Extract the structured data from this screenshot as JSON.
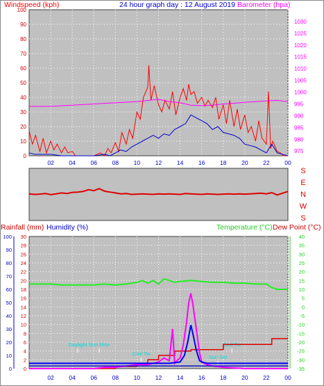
{
  "header": {
    "windspeed_label": "Windspeed (kph)",
    "title": "24 hour graph day : 12 August 2019",
    "barometer_label": "Barometer (hpa)"
  },
  "bottom_header": {
    "rainfall_label": "Rainfall (mm)",
    "humidity_label": "Humidity (%)",
    "temperature_label": "Temperature (°C)",
    "dewpoint_label": "Dew Point (°C)"
  },
  "colors": {
    "wind_gust": "#ff0000",
    "wind_avg": "#0000cc",
    "barometer": "#ff00ff",
    "wind_dir": "#dd0000",
    "rain": "#dd0000",
    "humidity": "#0000cc",
    "temperature": "#22ee22",
    "dewpoint": "#cc0000",
    "solar": "#ff00ff",
    "uv": "#0000ff",
    "annotation": "#00dddd",
    "plot_bg": "#c0c0c0"
  },
  "chart_data": [
    {
      "type": "line",
      "name": "wind-barometer",
      "x_ticks": [
        "02",
        "04",
        "06",
        "08",
        "10",
        "12",
        "14",
        "16",
        "18",
        "20",
        "22",
        "00"
      ],
      "left_axis": {
        "ticks": [
          0,
          10,
          20,
          30,
          40,
          50,
          60,
          70,
          80,
          90,
          100
        ],
        "ylim": [
          0,
          100
        ]
      },
      "right_axis": {
        "ticks": [
          975,
          980,
          985,
          990,
          995,
          1000,
          1005,
          1010,
          1015,
          1020,
          1025,
          1030
        ],
        "ylim": [
          973,
          1035
        ]
      },
      "xlim": [
        0,
        24
      ],
      "series": [
        {
          "key": "gust",
          "axis": "left",
          "color": "wind_gust",
          "x": [
            0,
            0.3,
            0.6,
            1,
            1.3,
            1.6,
            2,
            2.3,
            2.6,
            3,
            3.3,
            3.6,
            4,
            4.3,
            5,
            6,
            6.6,
            7,
            7.3,
            7.6,
            8,
            8.3,
            8.6,
            9,
            9.3,
            9.6,
            10,
            10.3,
            10.6,
            11,
            11.1,
            11.3,
            11.6,
            12,
            12.3,
            12.6,
            13,
            13.3,
            13.6,
            14,
            14.3,
            14.6,
            14.8,
            15,
            15.3,
            15.6,
            16,
            16.3,
            16.6,
            17,
            17.3,
            17.6,
            18,
            18.3,
            18.6,
            19,
            19.3,
            19.6,
            20,
            20.3,
            20.6,
            21,
            21.3,
            21.6,
            22,
            22.2,
            22.4,
            22.6,
            23,
            23.3,
            23.6,
            24
          ],
          "y": [
            17,
            8,
            14,
            3,
            12,
            2,
            10,
            4,
            8,
            2,
            6,
            2,
            3,
            0,
            0,
            0,
            2,
            0,
            5,
            2,
            9,
            3,
            16,
            8,
            18,
            12,
            30,
            25,
            40,
            47,
            62,
            38,
            48,
            35,
            30,
            38,
            32,
            44,
            28,
            40,
            46,
            38,
            49,
            42,
            44,
            36,
            40,
            34,
            38,
            33,
            40,
            25,
            35,
            22,
            38,
            20,
            32,
            18,
            28,
            16,
            20,
            10,
            24,
            12,
            8,
            44,
            5,
            10,
            3,
            2,
            0,
            0
          ]
        },
        {
          "key": "avg",
          "axis": "left",
          "color": "wind_avg",
          "x": [
            0,
            0.5,
            1,
            2,
            3,
            4,
            5,
            6,
            7,
            7.5,
            8,
            8.5,
            9,
            9.5,
            10,
            10.5,
            11,
            11.5,
            12,
            12.5,
            13,
            13.5,
            14,
            14.5,
            15,
            15.5,
            16,
            16.5,
            17,
            17.5,
            18,
            18.5,
            19,
            19.5,
            20,
            20.5,
            21,
            21.5,
            22,
            22.5,
            23,
            24
          ],
          "y": [
            2,
            1,
            1,
            1,
            0,
            0,
            0,
            0,
            1,
            0,
            2,
            4,
            3,
            6,
            8,
            10,
            12,
            14,
            12,
            15,
            14,
            18,
            20,
            22,
            28,
            26,
            24,
            22,
            18,
            20,
            16,
            15,
            14,
            12,
            8,
            7,
            6,
            4,
            2,
            8,
            2,
            0
          ]
        },
        {
          "key": "baro",
          "axis": "right",
          "color": "barometer",
          "x": [
            0,
            2,
            4,
            6,
            8,
            10,
            12,
            13,
            14,
            15,
            16,
            17,
            18,
            19,
            20,
            21,
            22,
            23,
            24
          ],
          "y": [
            994,
            994,
            994.5,
            995,
            995.5,
            996,
            997,
            996,
            995.5,
            994.5,
            994.3,
            994.5,
            995,
            995.3,
            995.7,
            996,
            996.3,
            996.5,
            996
          ]
        }
      ]
    },
    {
      "type": "line",
      "name": "wind-direction",
      "y_labels": [
        "S",
        "E",
        "N",
        "W",
        "S"
      ],
      "ylim": [
        0,
        360
      ],
      "xlim": [
        0,
        24
      ],
      "series": [
        {
          "key": "dir",
          "color": "wind_dir",
          "x": [
            0,
            0.5,
            1,
            1.5,
            2,
            2.5,
            3,
            3.5,
            4,
            4.5,
            5,
            5.5,
            6,
            6.5,
            7,
            7.5,
            8,
            8.5,
            9,
            9.5,
            10,
            10.5,
            11,
            11.5,
            12,
            12.5,
            13,
            13.5,
            14,
            14.5,
            15,
            15.5,
            16,
            16.5,
            17,
            17.5,
            18,
            18.5,
            19,
            19.5,
            20,
            20.5,
            21,
            21.5,
            22,
            22.5,
            23,
            23.5,
            24
          ],
          "y": [
            176,
            180,
            178,
            174,
            182,
            176,
            170,
            174,
            166,
            164,
            160,
            148,
            154,
            140,
            158,
            164,
            170,
            176,
            174,
            180,
            178,
            176,
            178,
            180,
            176,
            178,
            176,
            178,
            180,
            174,
            176,
            178,
            180,
            176,
            178,
            180,
            178,
            176,
            178,
            176,
            178,
            176,
            174,
            172,
            176,
            168,
            184,
            172,
            160
          ]
        }
      ]
    },
    {
      "type": "line",
      "name": "rain-humidity-temperature",
      "x_ticks": [
        "02",
        "04",
        "06",
        "08",
        "10",
        "12",
        "14",
        "16",
        "18",
        "20",
        "22",
        "00"
      ],
      "rain_axis": {
        "ticks": [
          0,
          2,
          4,
          6,
          8,
          10,
          12,
          14,
          16,
          18,
          20,
          22,
          24,
          26,
          28,
          30
        ],
        "ylim": [
          0,
          30
        ]
      },
      "humidity_axis": {
        "ticks": [
          0,
          10,
          20,
          30,
          40,
          50,
          60,
          70,
          80,
          90,
          100
        ],
        "ylim": [
          0,
          100
        ]
      },
      "temperature_axis": {
        "ticks": [
          -35,
          -30,
          -25,
          -20,
          -15,
          -10,
          -5,
          0,
          5,
          10,
          15,
          20,
          25,
          30,
          35,
          40
        ],
        "ylim": [
          -35,
          40
        ]
      },
      "xlim": [
        0,
        24
      ],
      "annotations": [
        {
          "text": "Daylight",
          "x": 4.5
        },
        {
          "text": "Sun Rise",
          "x": 6.5
        },
        {
          "text": "Civil Tw",
          "x": 10.4
        },
        {
          "text": "Sun Set",
          "x": 17.5
        },
        {
          "text": "Civil Tw",
          "x": 18.8
        }
      ],
      "series": [
        {
          "key": "temp",
          "axis": "temperature",
          "color": "temperature",
          "x": [
            0,
            1,
            2,
            3,
            4,
            5,
            6,
            7,
            8,
            9,
            10,
            10.5,
            11,
            11.5,
            12,
            12.5,
            13,
            13.5,
            14,
            15,
            16,
            17,
            18,
            19,
            20,
            21,
            22,
            22.5,
            23,
            24
          ],
          "y": [
            13,
            13,
            13,
            12.5,
            12.5,
            12.5,
            12.5,
            13,
            12.5,
            13,
            14,
            15,
            13.5,
            15,
            13,
            16,
            15,
            14,
            14.5,
            15,
            14.5,
            14,
            14,
            13.5,
            13.5,
            13,
            13,
            11,
            10,
            10
          ]
        },
        {
          "key": "rain",
          "axis": "rain",
          "color": "rain",
          "x": [
            0,
            8,
            8.01,
            10,
            10.01,
            11,
            11.01,
            12,
            12.01,
            13.5,
            13.51,
            15,
            15.01,
            18,
            18.01,
            22.5,
            22.51,
            24
          ],
          "y": [
            0,
            0,
            0.5,
            0.5,
            1,
            1,
            2,
            2,
            3,
            3,
            4,
            4,
            4.3,
            4.3,
            5.5,
            5.5,
            6.8,
            6.8
          ]
        },
        {
          "key": "solar",
          "axis": "humidity",
          "color": "solar",
          "x": [
            0,
            6,
            7,
            8,
            9,
            10,
            11,
            11.5,
            12,
            12.5,
            13,
            13.3,
            13.5,
            13.7,
            14,
            14.3,
            14.6,
            14.8,
            15,
            15.2,
            15.5,
            15.8,
            16,
            16.5,
            17,
            18,
            20,
            24
          ],
          "y": [
            0,
            0,
            1,
            1,
            2,
            3,
            3,
            4,
            5,
            8,
            6,
            30,
            4,
            6,
            8,
            18,
            35,
            50,
            57,
            48,
            30,
            12,
            5,
            3,
            2,
            1,
            0,
            0
          ]
        },
        {
          "key": "uv",
          "axis": "humidity",
          "color": "uv",
          "x": [
            0,
            10,
            11,
            12,
            13,
            14,
            14.4,
            14.7,
            15,
            15.2,
            15.5,
            15.8,
            16,
            16.5,
            17,
            18,
            24
          ],
          "y": [
            4,
            4,
            4,
            4,
            4,
            5,
            10,
            20,
            33,
            26,
            14,
            6,
            5,
            4,
            4,
            4,
            4
          ]
        },
        {
          "key": "hum",
          "axis": "humidity",
          "color": "humidity",
          "x": [
            0,
            2,
            4,
            6,
            8,
            10,
            12,
            14,
            16,
            18,
            20,
            22,
            24
          ],
          "y": [
            2,
            2,
            2,
            2,
            2,
            2,
            2,
            2,
            2,
            2,
            2,
            2,
            2
          ]
        }
      ]
    }
  ]
}
